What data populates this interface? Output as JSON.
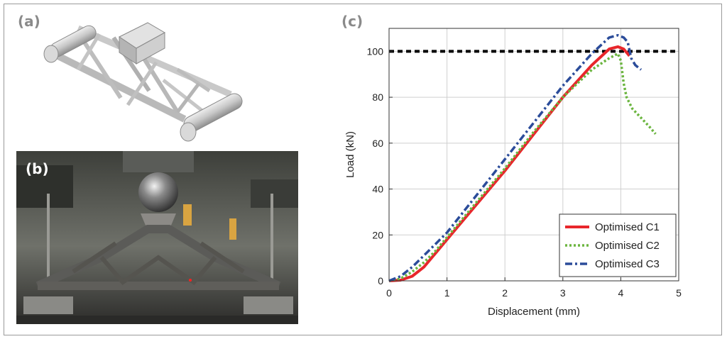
{
  "panels": {
    "a": {
      "label": "(a)"
    },
    "b": {
      "label": "(b)"
    },
    "c": {
      "label": "(c)"
    }
  },
  "chart_data": {
    "type": "line",
    "title": "",
    "xlabel": "Displacement (mm)",
    "ylabel": "Load (kN)",
    "xlim": [
      0,
      5
    ],
    "ylim": [
      0,
      110
    ],
    "xticks": [
      0,
      1,
      2,
      3,
      4,
      5
    ],
    "yticks": [
      0,
      20,
      40,
      60,
      80,
      100
    ],
    "grid": true,
    "legend_position": "bottom-right",
    "reference_line": {
      "y": 100,
      "style": "dashed",
      "color": "#000000"
    },
    "series": [
      {
        "name": "Optimised C1",
        "color": "#e8262b",
        "style": "solid",
        "x": [
          0,
          0.2,
          0.4,
          0.6,
          0.8,
          1.0,
          1.5,
          2.0,
          2.5,
          3.0,
          3.5,
          3.8,
          3.95,
          4.05,
          4.15
        ],
        "y": [
          0,
          0.3,
          2,
          6,
          12,
          18,
          33,
          48,
          64,
          80,
          94,
          101,
          102,
          101,
          98
        ]
      },
      {
        "name": "Optimised C2",
        "color": "#6bb53f",
        "style": "dotted",
        "x": [
          0,
          0.2,
          0.4,
          0.6,
          0.8,
          1.0,
          1.5,
          2.0,
          2.5,
          3.0,
          3.5,
          3.8,
          3.95,
          4.0,
          4.05,
          4.1,
          4.2,
          4.35,
          4.5,
          4.6
        ],
        "y": [
          0,
          1,
          4,
          8,
          13,
          19,
          34,
          49,
          65,
          80,
          92,
          97,
          99,
          96,
          86,
          80,
          75,
          71,
          67,
          64
        ]
      },
      {
        "name": "Optimised C3",
        "color": "#2b4c9a",
        "style": "dashdot",
        "x": [
          0,
          0.2,
          0.4,
          0.6,
          0.8,
          1.0,
          1.5,
          2.0,
          2.5,
          3.0,
          3.5,
          3.8,
          3.95,
          4.05,
          4.12,
          4.18,
          4.25,
          4.35
        ],
        "y": [
          0,
          2,
          6,
          11,
          16,
          21,
          37,
          53,
          69,
          85,
          99,
          106,
          107,
          106,
          104,
          97,
          94,
          92
        ]
      }
    ]
  }
}
